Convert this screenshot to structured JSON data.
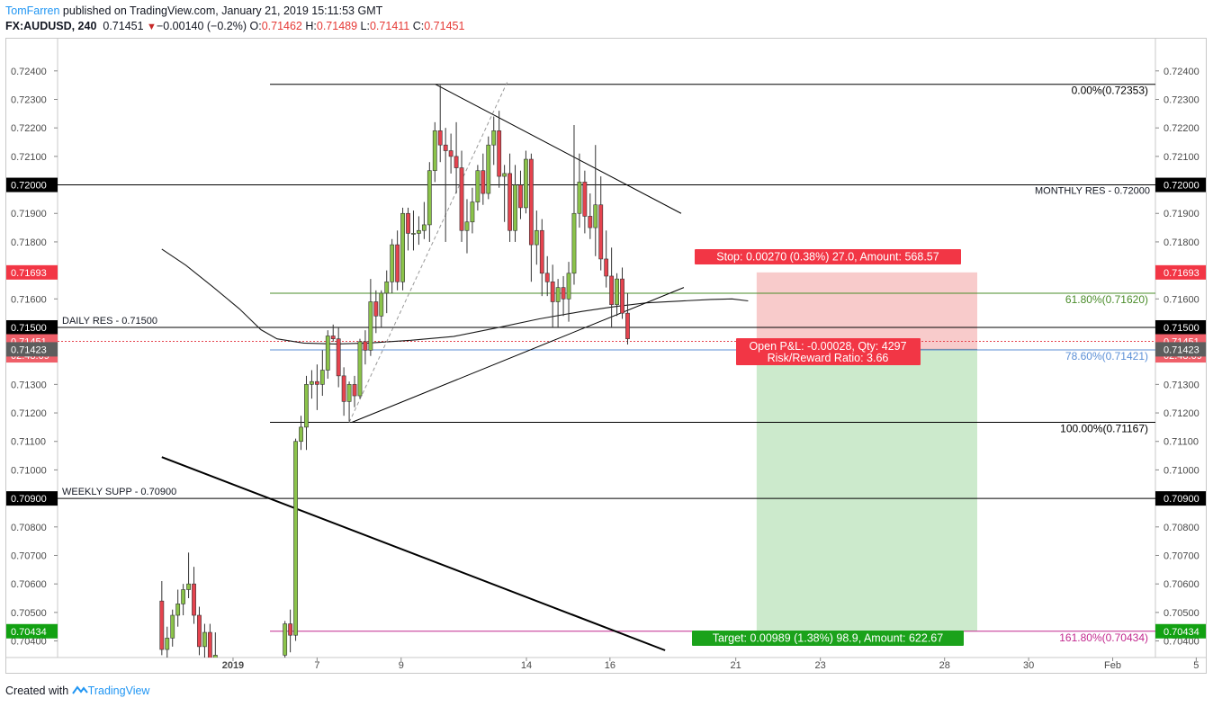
{
  "header": {
    "author": "TomFarren",
    "published": "published on TradingView.com, January 21, 2019 15:11:53 GMT",
    "symbol": "FX:AUDUSD, 240",
    "last": "0.71451",
    "arrow": "▼",
    "change": "−0.00140 (−0.2%)",
    "open_label": "O:",
    "open": "0.71462",
    "high_label": "H:",
    "high": "0.71489",
    "low_label": "L:",
    "low": "0.71411",
    "close_label": "C:",
    "close": "0.71451"
  },
  "footer": {
    "prefix": "Created with",
    "brand": "TradingView"
  },
  "colors": {
    "bull": "#8bc34a",
    "bear": "#e5434e",
    "candle_outline": "#333333",
    "fib_green": "#4a8c2a",
    "fib_blue": "#5b8fd6",
    "fib_magenta": "#c2288e",
    "stop_fill": "#f7c5c5",
    "target_fill": "#c9e9c9",
    "stop_label": "#f23645",
    "target_label": "#1ba21b"
  },
  "chart_data": {
    "type": "candlestick",
    "ylim": [
      0.70367,
      0.72472
    ],
    "y_ticks": [
      "0.72400",
      "0.72300",
      "0.72200",
      "0.72100",
      "0.71900",
      "0.71800",
      "0.71600",
      "0.71300",
      "0.71200",
      "0.71100",
      "0.71000",
      "0.70800",
      "0.70700",
      "0.70600",
      "0.70500",
      "0.70400"
    ],
    "x_ticks": [
      {
        "label": "2019",
        "bold": true,
        "slot": 6.8
      },
      {
        "label": "7",
        "slot": 22.5
      },
      {
        "label": "9",
        "slot": 38.2
      },
      {
        "label": "14",
        "slot": 61.6
      },
      {
        "label": "16",
        "slot": 77.2
      },
      {
        "label": "21",
        "slot": 100.7
      },
      {
        "label": "23",
        "slot": 116.5
      },
      {
        "label": "28",
        "slot": 139.7
      },
      {
        "label": "30",
        "slot": 155.4
      },
      {
        "label": "Feb",
        "slot": 171.1
      },
      {
        "label": "5",
        "slot": 186.7
      }
    ],
    "price_tags": [
      {
        "label": "0.72000",
        "value": 0.72,
        "style": "black"
      },
      {
        "label": "0.71693",
        "value": 0.71693,
        "style": "red"
      },
      {
        "label": "0.71500",
        "value": 0.715,
        "style": "black"
      },
      {
        "label": "0.71451",
        "value": 0.71451,
        "style": "lightred"
      },
      {
        "label": "02:48:09",
        "value": 0.71402,
        "style": "lightred"
      },
      {
        "label": "0.71423",
        "value": 0.71423,
        "style": "gray",
        "left_offset": 0.00042
      },
      {
        "label": "0.70900",
        "value": 0.709,
        "style": "black"
      },
      {
        "label": "0.70434",
        "value": 0.70434,
        "style": "green"
      }
    ],
    "horizontal_levels": [
      {
        "label": "DAILY RES - 0.71500",
        "value": 0.715,
        "text_side": "left"
      },
      {
        "label": "WEEKLY SUPP - 0.70900",
        "value": 0.709,
        "text_side": "left"
      },
      {
        "label": "MONTHLY RES - 0.72000",
        "value": 0.72,
        "text_side": "right"
      }
    ],
    "fib_levels": [
      {
        "label": "0.00%(0.72353)",
        "value": 0.72353,
        "color": "#000000"
      },
      {
        "label": "61.80%(0.71620)",
        "value": 0.7162,
        "color": "#4a8c2a"
      },
      {
        "label": "78.60%(0.71421)",
        "value": 0.71421,
        "color": "#5b8fd6"
      },
      {
        "label": "100.00%(0.71167)",
        "value": 0.71167,
        "color": "#000000"
      },
      {
        "label": "161.80%(0.70434)",
        "value": 0.70434,
        "color": "#c2288e"
      }
    ],
    "position": {
      "entry": 0.71423,
      "stop": 0.71693,
      "target": 0.70434,
      "start_slot": 104.6,
      "end_slot": 145.8,
      "stop_label": "Stop: 0.00270 (0.38%) 27.0, Amount: 568.57",
      "pnl_label": "Open P&L: -0.00028, Qty: 4297",
      "rr_label": "Risk/Reward Ratio: 3.66",
      "target_label": "Target: 0.00989 (1.38%) 98.9, Amount: 622.67"
    },
    "trendlines": [
      {
        "x1": 44.6,
        "y1": 0.72353,
        "x2": 90.5,
        "y2": 0.719
      },
      {
        "x1": 29.0,
        "y1": 0.71167,
        "x2": 91.0,
        "y2": 0.7164
      },
      {
        "x1": -6.5,
        "y1": 0.71045,
        "x2": 87.5,
        "y2": 0.70367
      }
    ],
    "dashed_lines": [
      {
        "x1": 28.5,
        "y1": 0.71167,
        "x2": 58.0,
        "y2": 0.7236
      }
    ],
    "moving_average": [
      [
        -6.5,
        0.71775
      ],
      [
        -2,
        0.71718
      ],
      [
        3,
        0.71643
      ],
      [
        8,
        0.71565
      ],
      [
        12,
        0.71492
      ],
      [
        15,
        0.7146
      ],
      [
        20,
        0.71445
      ],
      [
        26,
        0.71442
      ],
      [
        32,
        0.71445
      ],
      [
        40,
        0.71455
      ],
      [
        48,
        0.71468
      ],
      [
        56,
        0.71498
      ],
      [
        64,
        0.7153
      ],
      [
        72,
        0.71556
      ],
      [
        78,
        0.71573
      ],
      [
        84,
        0.71586
      ],
      [
        90,
        0.71592
      ],
      [
        96,
        0.71598
      ],
      [
        100,
        0.716
      ],
      [
        103,
        0.71593
      ]
    ],
    "candles": [
      {
        "slot": -6.5,
        "o": 0.7054,
        "h": 0.7061,
        "l": 0.7035,
        "c": 0.7037
      },
      {
        "slot": -5.5,
        "o": 0.7037,
        "h": 0.7045,
        "l": 0.7032,
        "c": 0.7041
      },
      {
        "slot": -4.5,
        "o": 0.7041,
        "h": 0.7051,
        "l": 0.7038,
        "c": 0.7049
      },
      {
        "slot": -3.5,
        "o": 0.7049,
        "h": 0.7058,
        "l": 0.7045,
        "c": 0.7053
      },
      {
        "slot": -2.5,
        "o": 0.7053,
        "h": 0.706,
        "l": 0.7049,
        "c": 0.7058
      },
      {
        "slot": -1.5,
        "o": 0.7058,
        "h": 0.7071,
        "l": 0.7055,
        "c": 0.706
      },
      {
        "slot": -0.5,
        "o": 0.706,
        "h": 0.7066,
        "l": 0.7046,
        "c": 0.7049
      },
      {
        "slot": 0.5,
        "o": 0.7049,
        "h": 0.7052,
        "l": 0.7035,
        "c": 0.7038
      },
      {
        "slot": 1.5,
        "o": 0.7038,
        "h": 0.7046,
        "l": 0.7033,
        "c": 0.7043
      },
      {
        "slot": 2.5,
        "o": 0.7043,
        "h": 0.7046,
        "l": 0.7028,
        "c": 0.7031
      },
      {
        "slot": 3.5,
        "o": 0.7031,
        "h": 0.7043,
        "l": 0.7028,
        "c": 0.7035
      },
      {
        "slot": 16.5,
        "o": 0.7035,
        "h": 0.7047,
        "l": 0.7033,
        "c": 0.7046
      },
      {
        "slot": 17.5,
        "o": 0.7046,
        "h": 0.7051,
        "l": 0.7036,
        "c": 0.7042
      },
      {
        "slot": 18.5,
        "o": 0.7042,
        "h": 0.7111,
        "l": 0.704,
        "c": 0.711
      },
      {
        "slot": 19.5,
        "o": 0.711,
        "h": 0.7119,
        "l": 0.7107,
        "c": 0.7115
      },
      {
        "slot": 20.5,
        "o": 0.7115,
        "h": 0.7133,
        "l": 0.7107,
        "c": 0.713
      },
      {
        "slot": 21.5,
        "o": 0.713,
        "h": 0.7135,
        "l": 0.7125,
        "c": 0.7131
      },
      {
        "slot": 22.5,
        "o": 0.7131,
        "h": 0.7137,
        "l": 0.7121,
        "c": 0.713
      },
      {
        "slot": 23.5,
        "o": 0.713,
        "h": 0.7142,
        "l": 0.7126,
        "c": 0.7135
      },
      {
        "slot": 24.5,
        "o": 0.7135,
        "h": 0.7149,
        "l": 0.7132,
        "c": 0.7147
      },
      {
        "slot": 25.5,
        "o": 0.7147,
        "h": 0.7151,
        "l": 0.7145,
        "c": 0.7146
      },
      {
        "slot": 26.5,
        "o": 0.7146,
        "h": 0.715,
        "l": 0.7129,
        "c": 0.7133
      },
      {
        "slot": 27.5,
        "o": 0.7133,
        "h": 0.7136,
        "l": 0.7119,
        "c": 0.7124
      },
      {
        "slot": 28.5,
        "o": 0.7124,
        "h": 0.7131,
        "l": 0.7117,
        "c": 0.713
      },
      {
        "slot": 29.5,
        "o": 0.713,
        "h": 0.7133,
        "l": 0.7122,
        "c": 0.7126
      },
      {
        "slot": 30.5,
        "o": 0.7126,
        "h": 0.7146,
        "l": 0.7125,
        "c": 0.7145
      },
      {
        "slot": 31.5,
        "o": 0.7145,
        "h": 0.7149,
        "l": 0.7137,
        "c": 0.7142
      },
      {
        "slot": 32.5,
        "o": 0.7142,
        "h": 0.7167,
        "l": 0.714,
        "c": 0.7159
      },
      {
        "slot": 33.5,
        "o": 0.7159,
        "h": 0.7163,
        "l": 0.7148,
        "c": 0.7154
      },
      {
        "slot": 34.5,
        "o": 0.7154,
        "h": 0.7163,
        "l": 0.715,
        "c": 0.7162
      },
      {
        "slot": 35.5,
        "o": 0.7162,
        "h": 0.717,
        "l": 0.7155,
        "c": 0.7166
      },
      {
        "slot": 36.5,
        "o": 0.7166,
        "h": 0.7181,
        "l": 0.7162,
        "c": 0.7179
      },
      {
        "slot": 37.5,
        "o": 0.7179,
        "h": 0.7184,
        "l": 0.7163,
        "c": 0.7166
      },
      {
        "slot": 38.5,
        "o": 0.7166,
        "h": 0.7192,
        "l": 0.7163,
        "c": 0.719
      },
      {
        "slot": 39.5,
        "o": 0.719,
        "h": 0.7192,
        "l": 0.7177,
        "c": 0.7183
      },
      {
        "slot": 40.5,
        "o": 0.7183,
        "h": 0.7191,
        "l": 0.7177,
        "c": 0.7183
      },
      {
        "slot": 41.5,
        "o": 0.7183,
        "h": 0.7189,
        "l": 0.7179,
        "c": 0.7184
      },
      {
        "slot": 42.5,
        "o": 0.7184,
        "h": 0.7194,
        "l": 0.7181,
        "c": 0.7186
      },
      {
        "slot": 43.5,
        "o": 0.7186,
        "h": 0.7208,
        "l": 0.718,
        "c": 0.7205
      },
      {
        "slot": 44.5,
        "o": 0.7205,
        "h": 0.7222,
        "l": 0.7201,
        "c": 0.7219
      },
      {
        "slot": 45.5,
        "o": 0.7219,
        "h": 0.7235,
        "l": 0.7208,
        "c": 0.7214
      },
      {
        "slot": 46.5,
        "o": 0.7214,
        "h": 0.722,
        "l": 0.718,
        "c": 0.7212
      },
      {
        "slot": 47.5,
        "o": 0.7212,
        "h": 0.7218,
        "l": 0.7204,
        "c": 0.721
      },
      {
        "slot": 48.5,
        "o": 0.721,
        "h": 0.7222,
        "l": 0.7197,
        "c": 0.7206
      },
      {
        "slot": 49.5,
        "o": 0.7206,
        "h": 0.7212,
        "l": 0.718,
        "c": 0.7184
      },
      {
        "slot": 50.5,
        "o": 0.7184,
        "h": 0.7195,
        "l": 0.7176,
        "c": 0.7187
      },
      {
        "slot": 51.5,
        "o": 0.7187,
        "h": 0.7199,
        "l": 0.7183,
        "c": 0.7194
      },
      {
        "slot": 52.5,
        "o": 0.7194,
        "h": 0.7207,
        "l": 0.7191,
        "c": 0.7205
      },
      {
        "slot": 53.5,
        "o": 0.7205,
        "h": 0.7211,
        "l": 0.7193,
        "c": 0.7197
      },
      {
        "slot": 54.5,
        "o": 0.7197,
        "h": 0.7217,
        "l": 0.7195,
        "c": 0.7214
      },
      {
        "slot": 55.5,
        "o": 0.7214,
        "h": 0.7224,
        "l": 0.7207,
        "c": 0.7219
      },
      {
        "slot": 56.5,
        "o": 0.7219,
        "h": 0.7226,
        "l": 0.7199,
        "c": 0.7203
      },
      {
        "slot": 57.5,
        "o": 0.7203,
        "h": 0.7207,
        "l": 0.7187,
        "c": 0.7204
      },
      {
        "slot": 58.5,
        "o": 0.7204,
        "h": 0.7211,
        "l": 0.718,
        "c": 0.7184
      },
      {
        "slot": 59.5,
        "o": 0.7184,
        "h": 0.7207,
        "l": 0.718,
        "c": 0.72
      },
      {
        "slot": 60.5,
        "o": 0.72,
        "h": 0.7205,
        "l": 0.7188,
        "c": 0.7192
      },
      {
        "slot": 61.5,
        "o": 0.7192,
        "h": 0.7212,
        "l": 0.719,
        "c": 0.7209
      },
      {
        "slot": 62.5,
        "o": 0.7209,
        "h": 0.7211,
        "l": 0.7166,
        "c": 0.7179
      },
      {
        "slot": 63.5,
        "o": 0.7179,
        "h": 0.7191,
        "l": 0.7172,
        "c": 0.7184
      },
      {
        "slot": 64.5,
        "o": 0.7184,
        "h": 0.7188,
        "l": 0.7161,
        "c": 0.7169
      },
      {
        "slot": 65.5,
        "o": 0.7169,
        "h": 0.7175,
        "l": 0.7161,
        "c": 0.7166
      },
      {
        "slot": 66.5,
        "o": 0.7166,
        "h": 0.7172,
        "l": 0.715,
        "c": 0.7159
      },
      {
        "slot": 67.5,
        "o": 0.7159,
        "h": 0.7167,
        "l": 0.715,
        "c": 0.7164
      },
      {
        "slot": 68.5,
        "o": 0.7164,
        "h": 0.7168,
        "l": 0.7154,
        "c": 0.716
      },
      {
        "slot": 69.5,
        "o": 0.716,
        "h": 0.7173,
        "l": 0.7152,
        "c": 0.7169
      },
      {
        "slot": 70.5,
        "o": 0.7169,
        "h": 0.7221,
        "l": 0.7165,
        "c": 0.719
      },
      {
        "slot": 71.5,
        "o": 0.719,
        "h": 0.7211,
        "l": 0.7185,
        "c": 0.7201
      },
      {
        "slot": 72.5,
        "o": 0.7201,
        "h": 0.7205,
        "l": 0.7183,
        "c": 0.7189
      },
      {
        "slot": 73.5,
        "o": 0.7189,
        "h": 0.7197,
        "l": 0.7181,
        "c": 0.7185
      },
      {
        "slot": 74.5,
        "o": 0.7185,
        "h": 0.7214,
        "l": 0.7175,
        "c": 0.7193
      },
      {
        "slot": 75.5,
        "o": 0.7193,
        "h": 0.7203,
        "l": 0.717,
        "c": 0.7174
      },
      {
        "slot": 76.5,
        "o": 0.7174,
        "h": 0.7184,
        "l": 0.7164,
        "c": 0.7168
      },
      {
        "slot": 77.5,
        "o": 0.7168,
        "h": 0.7178,
        "l": 0.715,
        "c": 0.7158
      },
      {
        "slot": 78.5,
        "o": 0.7158,
        "h": 0.7169,
        "l": 0.7154,
        "c": 0.7167
      },
      {
        "slot": 79.5,
        "o": 0.7167,
        "h": 0.7171,
        "l": 0.7153,
        "c": 0.7155
      },
      {
        "slot": 80.5,
        "o": 0.7155,
        "h": 0.7162,
        "l": 0.7144,
        "c": 0.7146
      }
    ]
  }
}
